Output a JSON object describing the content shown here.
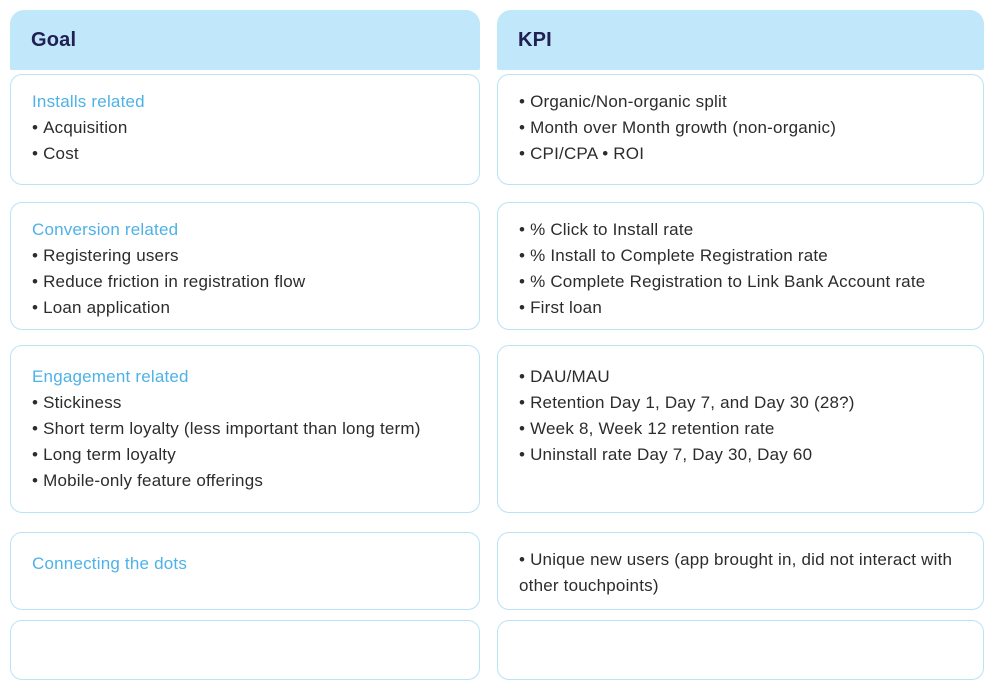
{
  "table": {
    "columns": {
      "goal": "Goal",
      "kpi": "KPI"
    },
    "rows": [
      {
        "goal": {
          "title": "Installs related",
          "items": [
            "Acquisition",
            "Cost"
          ]
        },
        "kpi": {
          "items": [
            "Organic/Non-organic split",
            "Month over Month growth (non-organic)",
            "CPI/CPA • ROI"
          ]
        }
      },
      {
        "goal": {
          "title": "Conversion related",
          "items": [
            "Registering users",
            "Reduce friction in registration flow",
            "Loan application"
          ]
        },
        "kpi": {
          "items": [
            "% Click to Install rate",
            "% Install to Complete Registration rate",
            "% Complete Registration to Link Bank Account rate",
            "First loan"
          ]
        }
      },
      {
        "goal": {
          "title": "Engagement related",
          "items": [
            "Stickiness",
            "Short term loyalty (less important than long term)",
            "Long term loyalty",
            "Mobile-only feature offerings"
          ]
        },
        "kpi": {
          "items": [
            "DAU/MAU",
            "Retention Day 1, Day 7, and Day 30 (28?)",
            "Week 8, Week 12 retention rate",
            "Uninstall rate Day 7, Day 30, Day 60"
          ]
        }
      },
      {
        "goal": {
          "title": "Connecting the dots",
          "items": []
        },
        "kpi": {
          "items": [
            "Unique new users (app brought in, did not interact with other touchpoints)"
          ]
        }
      }
    ]
  },
  "colors": {
    "header_fill": "#c1e8fa",
    "card_border": "#b9e3f6",
    "header_text": "#202052",
    "category_title": "#4db2e8",
    "body_text": "#2c2c2c"
  }
}
